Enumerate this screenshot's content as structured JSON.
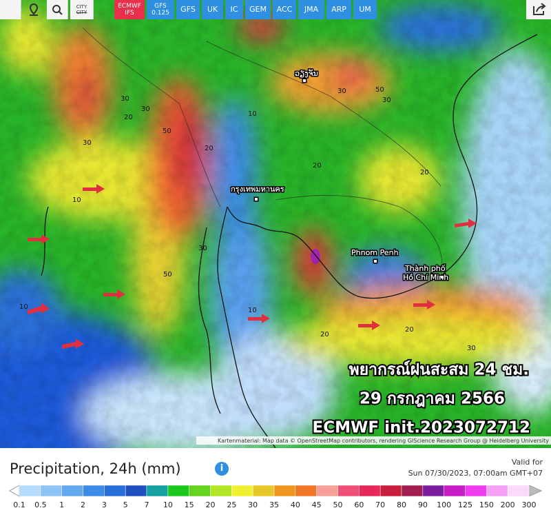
{
  "toolbar": {
    "city_label": "CITY",
    "models": [
      "ECMWF\nIFS",
      "GFS\n0.125",
      "GFS",
      "UK",
      "IC",
      "GEM",
      "ACC",
      "JMA",
      "ARP",
      "UM"
    ],
    "active_model_color": "#e8304a",
    "model_color": "#2f8fe0"
  },
  "map": {
    "overlay_title": "พยากรณ์ฝนสะสม 24 ชม.",
    "overlay_date": "29 กรกฎาคม 2566",
    "overlay_init": "ECMWF init.2023072712",
    "attribution": "Kartenmaterial: Map data © OpenStreetMap contributors, rendering GIScience Research Group @ Heidelberg University",
    "places": [
      "ວຽງຈັນ",
      "กรุงเทพมหานคร",
      "Phnom Penh",
      "Thành phố",
      "Hồ Chí Minh"
    ],
    "contour_labels": [
      "30",
      "20",
      "30",
      "50",
      "30",
      "20",
      "10",
      "10",
      "50",
      "30",
      "20",
      "30",
      "10",
      "20",
      "30",
      "50",
      "20",
      "10",
      "30",
      "20"
    ]
  },
  "legend": {
    "title": "Precipitation, 24h (mm)",
    "valid_label": "Valid for",
    "valid_time": "Sun 07/30/2023, 07:00am GMT+07",
    "levels": [
      "0.1",
      "0.5",
      "1",
      "2",
      "3",
      "5",
      "7",
      "10",
      "15",
      "20",
      "25",
      "30",
      "35",
      "40",
      "45",
      "50",
      "60",
      "70",
      "80",
      "90",
      "100",
      "125",
      "150",
      "200",
      "300"
    ],
    "colors": [
      "#b4dcfa",
      "#8cc4f5",
      "#64a8f0",
      "#3c8ce6",
      "#2a6fd8",
      "#1e50c0",
      "#14a0a0",
      "#1ec81e",
      "#64d21e",
      "#b4e628",
      "#f0f032",
      "#e6c828",
      "#f0961e",
      "#f07828",
      "#f5a096",
      "#f05078",
      "#e6285a",
      "#c81e3c",
      "#a01e50",
      "#7a1ea0",
      "#c81ec8",
      "#f03cf0",
      "#f5a0f5",
      "#fadcfa"
    ]
  }
}
